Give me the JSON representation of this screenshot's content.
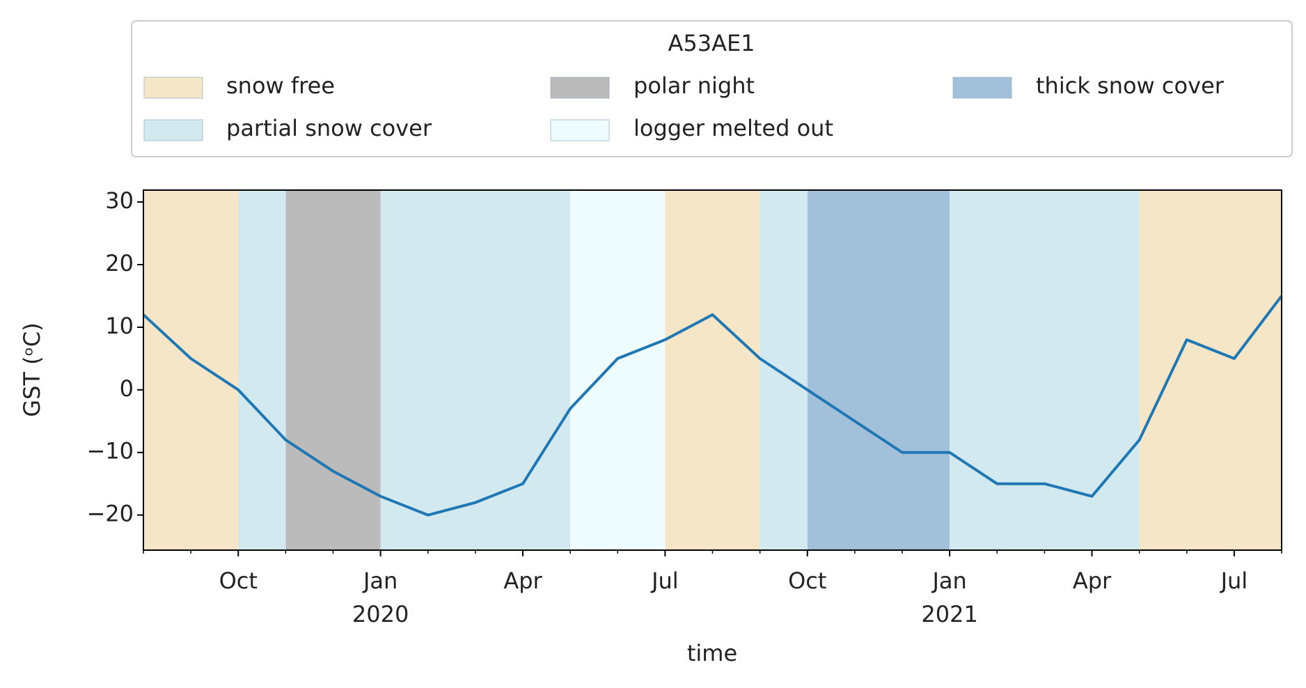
{
  "chart_data": {
    "type": "line",
    "legend_title": "A53AE1",
    "x_label": "time",
    "y_label": "GST (ᵒC)",
    "x": [
      "2019-08",
      "2019-09",
      "2019-10",
      "2019-11",
      "2019-12",
      "2020-01",
      "2020-02",
      "2020-03",
      "2020-04",
      "2020-05",
      "2020-06",
      "2020-07",
      "2020-08",
      "2020-09",
      "2020-10",
      "2020-11",
      "2020-12",
      "2021-01",
      "2021-02",
      "2021-03",
      "2021-04",
      "2021-05",
      "2021-06",
      "2021-07",
      "2021-08"
    ],
    "series": [
      {
        "name": "GST",
        "color": "#1f77b4",
        "values": [
          12,
          5,
          0,
          -8,
          -13,
          -17,
          -20,
          -18,
          -15,
          -3,
          5,
          8,
          12,
          5,
          0,
          -5,
          -10,
          -10,
          -15,
          -15,
          -17,
          -8,
          8,
          5,
          15
        ]
      }
    ],
    "periods": [
      {
        "name": "snow free",
        "color": "#f5e6c8",
        "spans": [
          [
            "2019-08",
            "2019-10"
          ],
          [
            "2020-07",
            "2020-09"
          ],
          [
            "2020-10",
            "2020-10"
          ],
          [
            "2021-05",
            "2021-08"
          ]
        ]
      },
      {
        "name": "polar night",
        "color": "#bbbbbb",
        "spans": [
          [
            "2019-11",
            "2020-01"
          ]
        ]
      },
      {
        "name": "thick snow cover",
        "color": "#a3c0db",
        "spans": [
          [
            "2020-10",
            "2021-01"
          ]
        ]
      },
      {
        "name": "partial snow cover",
        "color": "#d3e9f0",
        "spans": [
          [
            "2019-10",
            "2019-11"
          ],
          [
            "2020-01",
            "2020-05"
          ],
          [
            "2020-09",
            "2020-10"
          ],
          [
            "2021-01",
            "2021-05"
          ]
        ]
      },
      {
        "name": "logger melted out",
        "color": "#eefcfd",
        "spans": [
          [
            "2020-05",
            "2020-07"
          ]
        ]
      }
    ],
    "xlim": [
      "2019-08",
      "2021-08"
    ],
    "xticks": [
      {
        "value": "2019-10",
        "label": "Oct"
      },
      {
        "value": "2020-01",
        "label": "Jan\n2020"
      },
      {
        "value": "2020-04",
        "label": "Apr"
      },
      {
        "value": "2020-07",
        "label": "Jul"
      },
      {
        "value": "2020-10",
        "label": "Oct"
      },
      {
        "value": "2021-01",
        "label": "Jan\n2021"
      },
      {
        "value": "2021-04",
        "label": "Apr"
      },
      {
        "value": "2021-07",
        "label": "Jul"
      }
    ],
    "ylim": [
      -25.6,
      31.9
    ],
    "yticks": [
      {
        "value": -20,
        "label": "−20"
      },
      {
        "value": -10,
        "label": "−10"
      },
      0,
      10,
      20,
      30
    ],
    "grid": false
  }
}
